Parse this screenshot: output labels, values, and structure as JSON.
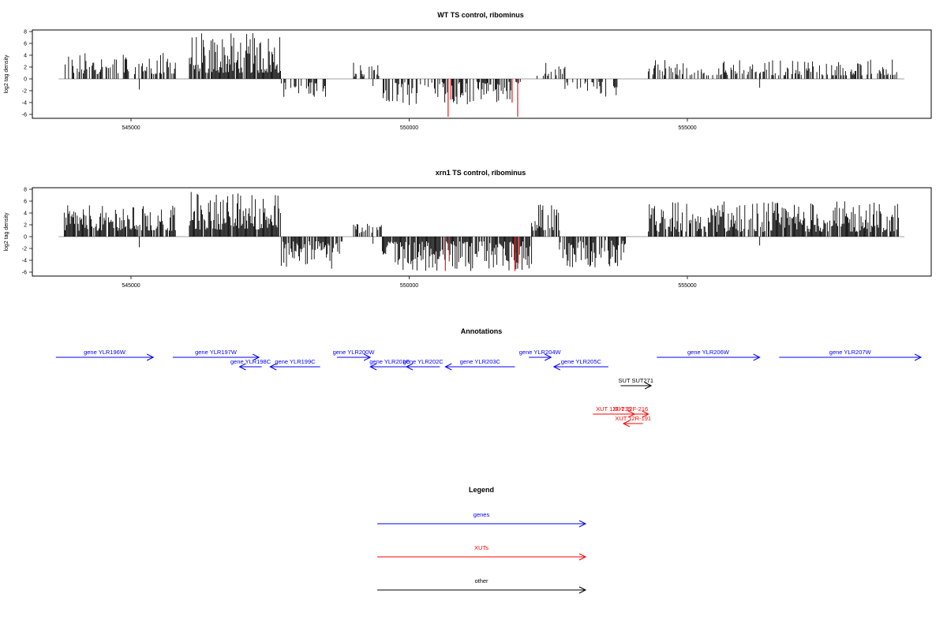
{
  "chart_data": [
    {
      "type": "bar",
      "title": "WT TS control, ribominus",
      "ylabel": "log2 tag density",
      "xlabel": "",
      "xlim": [
        543500,
        559000
      ],
      "ylim": [
        -6.5,
        8.5
      ],
      "xticks": [
        545000,
        550000,
        555000
      ],
      "xtick_labels": [
        "545000",
        "550000",
        "555000"
      ],
      "yticks": [
        -6,
        -4,
        -2,
        0,
        2,
        4,
        6,
        8
      ],
      "ytick_labels": [
        "-6",
        "-4",
        "-2",
        "0",
        "2",
        "4",
        "6",
        "8"
      ],
      "baseline_range": [
        543700,
        558900
      ],
      "highlight_color": "#e41a1c",
      "bar_color": "#000000",
      "segments": [
        {
          "start": 543800,
          "end": 545800,
          "lo": 0.8,
          "hi": 4.5,
          "sign": 1,
          "density": 0.55
        },
        {
          "start": 546050,
          "end": 547700,
          "lo": 1.0,
          "hi": 7.8,
          "sign": 1,
          "density": 0.9
        },
        {
          "start": 547700,
          "end": 548600,
          "lo": 0.6,
          "hi": 3.2,
          "sign": -1,
          "density": 0.45
        },
        {
          "start": 549000,
          "end": 549500,
          "lo": 0.4,
          "hi": 3.0,
          "sign": 1,
          "density": 0.4
        },
        {
          "start": 549500,
          "end": 552000,
          "lo": 0.5,
          "hi": 4.5,
          "sign": -1,
          "density": 0.55
        },
        {
          "start": 552300,
          "end": 552800,
          "lo": 0.5,
          "hi": 3.8,
          "sign": 1,
          "density": 0.4
        },
        {
          "start": 552800,
          "end": 553800,
          "lo": 0.5,
          "hi": 3.0,
          "sign": -1,
          "density": 0.3
        },
        {
          "start": 554300,
          "end": 558800,
          "lo": 0.6,
          "hi": 3.3,
          "sign": 1,
          "density": 0.5
        }
      ],
      "highlights": [
        {
          "x": 550700,
          "value": -6.4
        },
        {
          "x": 550750,
          "value": -3.5
        },
        {
          "x": 551850,
          "value": -4.0
        },
        {
          "x": 551950,
          "value": -6.4
        }
      ]
    },
    {
      "type": "bar",
      "title": "xrn1 TS control, ribominus",
      "ylabel": "log2 tag density",
      "xlabel": "",
      "xlim": [
        543500,
        559000
      ],
      "ylim": [
        -6.5,
        8.5
      ],
      "xticks": [
        545000,
        550000,
        555000
      ],
      "xtick_labels": [
        "545000",
        "550000",
        "555000"
      ],
      "yticks": [
        -6,
        -4,
        -2,
        0,
        2,
        4,
        6,
        8
      ],
      "ytick_labels": [
        "-6",
        "-4",
        "-2",
        "0",
        "2",
        "4",
        "6",
        "8"
      ],
      "baseline_range": [
        543700,
        558900
      ],
      "highlight_color": "#e41a1c",
      "bar_color": "#000000",
      "segments": [
        {
          "start": 543800,
          "end": 545800,
          "lo": 1.0,
          "hi": 5.3,
          "sign": 1,
          "density": 0.85
        },
        {
          "start": 546050,
          "end": 547700,
          "lo": 1.2,
          "hi": 7.6,
          "sign": 1,
          "density": 0.95
        },
        {
          "start": 547700,
          "end": 548800,
          "lo": 0.8,
          "hi": 5.6,
          "sign": -1,
          "density": 0.85
        },
        {
          "start": 549000,
          "end": 549500,
          "lo": 0.6,
          "hi": 2.5,
          "sign": 1,
          "density": 0.6
        },
        {
          "start": 549500,
          "end": 552200,
          "lo": 0.8,
          "hi": 5.8,
          "sign": -1,
          "density": 0.85
        },
        {
          "start": 552200,
          "end": 552700,
          "lo": 1.0,
          "hi": 5.6,
          "sign": 1,
          "density": 0.8
        },
        {
          "start": 552700,
          "end": 553900,
          "lo": 0.6,
          "hi": 5.2,
          "sign": -1,
          "density": 0.75
        },
        {
          "start": 554300,
          "end": 558800,
          "lo": 0.8,
          "hi": 6.0,
          "sign": 1,
          "density": 0.85
        }
      ],
      "highlights": [
        {
          "x": 550650,
          "value": -5.8
        },
        {
          "x": 550720,
          "value": -4.2
        },
        {
          "x": 551900,
          "value": -5.8
        },
        {
          "x": 551960,
          "value": -4.5
        }
      ]
    }
  ],
  "annotations": {
    "title": "Annotations",
    "xlim": [
      543500,
      559000
    ],
    "features": [
      {
        "label": "gene YLR196W",
        "start": 543650,
        "end": 545400,
        "strand": "+",
        "type": "gene",
        "row": 0
      },
      {
        "label": "gene YLR197W",
        "start": 545750,
        "end": 547300,
        "strand": "+",
        "type": "gene",
        "row": 0
      },
      {
        "label": "gene YLR198C",
        "start": 546950,
        "end": 547350,
        "strand": "-",
        "type": "gene",
        "row": 1
      },
      {
        "label": "gene YLR199C",
        "start": 547500,
        "end": 548400,
        "strand": "-",
        "type": "gene",
        "row": 1
      },
      {
        "label": "gene YLR200W",
        "start": 548700,
        "end": 549300,
        "strand": "+",
        "type": "gene",
        "row": 0
      },
      {
        "label": "gene YLR201C",
        "start": 549300,
        "end": 550000,
        "strand": "-",
        "type": "gene",
        "row": 1
      },
      {
        "label": "gene YLR202C",
        "start": 549950,
        "end": 550550,
        "strand": "-",
        "type": "gene",
        "row": 1
      },
      {
        "label": "gene YLR203C",
        "start": 550650,
        "end": 551900,
        "strand": "-",
        "type": "gene",
        "row": 1
      },
      {
        "label": "gene YLR204W",
        "start": 552150,
        "end": 552550,
        "strand": "+",
        "type": "gene",
        "row": 0
      },
      {
        "label": "gene YLR205C",
        "start": 552600,
        "end": 553580,
        "strand": "-",
        "type": "gene",
        "row": 1
      },
      {
        "label": "gene YLR206W",
        "start": 554450,
        "end": 556300,
        "strand": "+",
        "type": "gene",
        "row": 0
      },
      {
        "label": "gene YLR207W",
        "start": 556650,
        "end": 559200,
        "strand": "+",
        "type": "gene",
        "row": 0
      },
      {
        "label": "SUT SUT271",
        "start": 553800,
        "end": 554350,
        "strand": "+",
        "type": "other",
        "row": 3
      },
      {
        "label": "XUT 12F-215",
        "start": 553300,
        "end": 554050,
        "strand": "+",
        "type": "xut",
        "row": 6
      },
      {
        "label": "XUT 12F-216",
        "start": 553650,
        "end": 554300,
        "strand": "+",
        "type": "xut",
        "row": 6
      },
      {
        "label": "XUT 12R-191",
        "start": 553850,
        "end": 554200,
        "strand": "-",
        "type": "xut",
        "row": 7
      }
    ]
  },
  "legend": {
    "title": "Legend",
    "items": [
      {
        "label": "genes",
        "color": "#0000ff"
      },
      {
        "label": "XUTs",
        "color": "#ff0000"
      },
      {
        "label": "other",
        "color": "#000000"
      }
    ]
  },
  "colors": {
    "gene": "#0000ff",
    "xut": "#ff0000",
    "other": "#000000",
    "axis": "#000000",
    "baseline": "#808080"
  }
}
